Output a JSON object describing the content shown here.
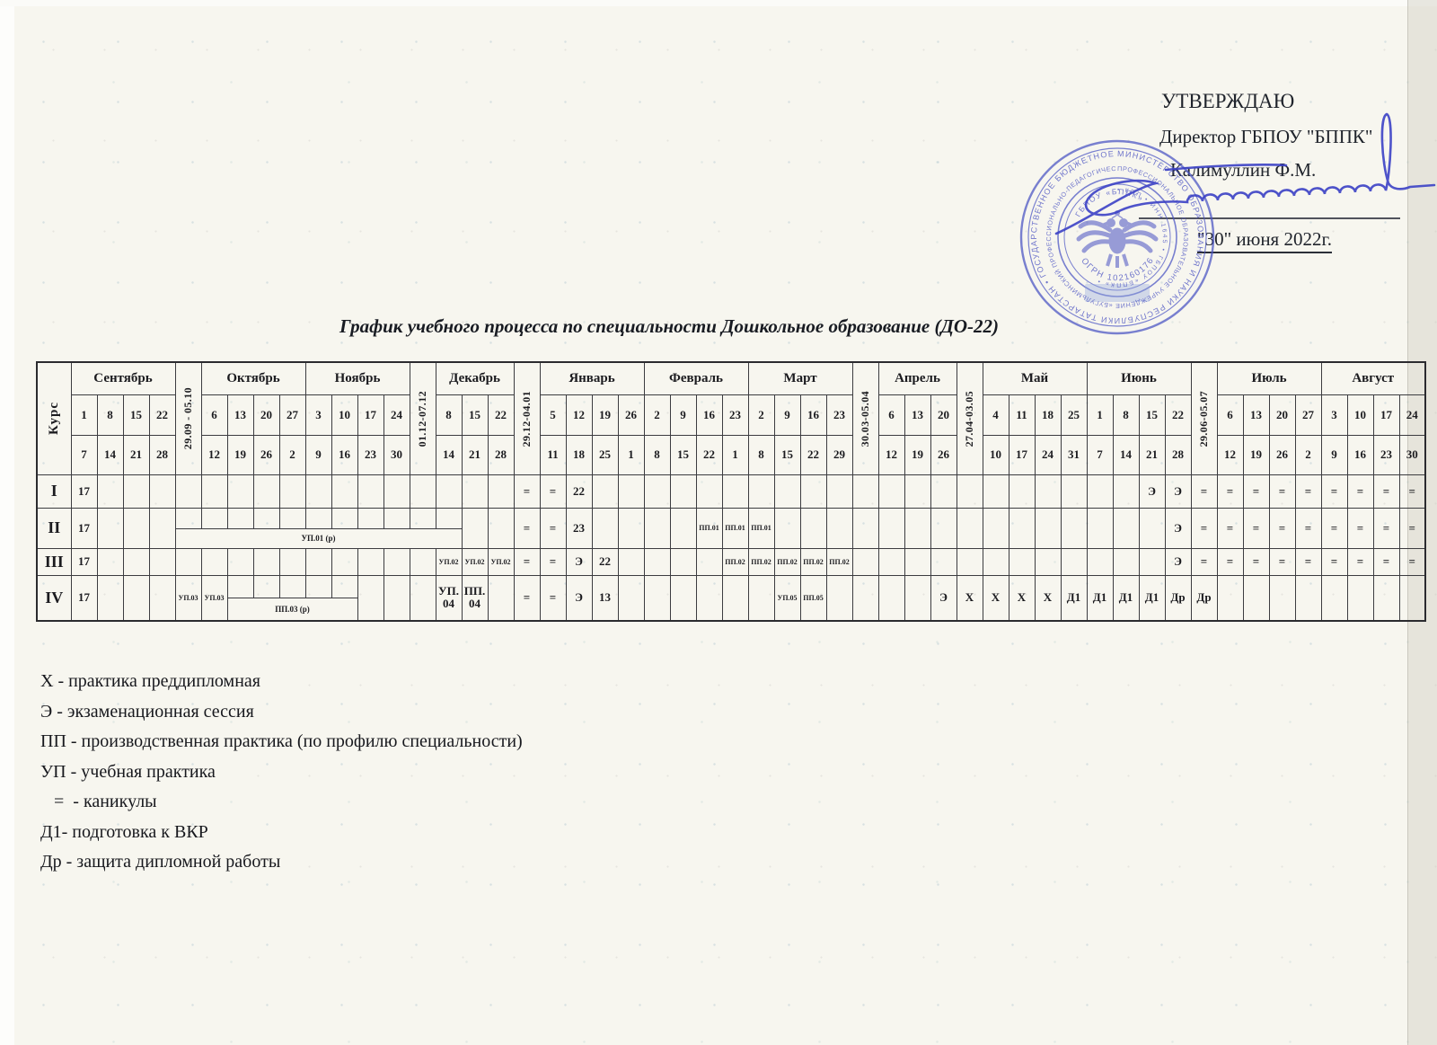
{
  "approval": {
    "line1": "УТВЕРЖДАЮ",
    "line2": "Директор ГБПОУ \"БППК\"",
    "line3": "Калимуллин Ф.М.",
    "date": "\"30\" июня 2022г."
  },
  "stamp": {
    "ring_outer": "МИНИСТЕРСТВО ОБРАЗОВАНИЯ И НАУКИ РЕСПУБЛИКИ ТАТАРСТАН • ГОСУДАРСТВЕННОЕ БЮДЖЕТНОЕ •",
    "ring_middle": "ПРОФЕССИОНАЛЬНОЕ ОБРАЗОВАТЕЛЬНОЕ УЧРЕЖДЕНИЕ «БУГУЛЬМИНСКИЙ ПРОФЕССИОНАЛЬНО-ПЕДАГОГИЧЕСКИЙ КОЛЛЕДЖ»",
    "ring_inner": "• КПП • ИНН 1645 • ГБПОУ «БППК» •",
    "arc_top": "ГБПОУ «БППК»",
    "arc_bottom": "ОГРН 1021601765140"
  },
  "title": "График учебного процесса по специальности Дошкольное образование (ДО-22)",
  "schedule": {
    "course_label": "Курс",
    "months": [
      {
        "name": "Сентябрь",
        "weeks": [
          [
            "1",
            "7"
          ],
          [
            "8",
            "14"
          ],
          [
            "15",
            "21"
          ],
          [
            "22",
            "28"
          ]
        ]
      },
      {
        "name": "29.09 - 05.10",
        "vertical": true
      },
      {
        "name": "Октябрь",
        "weeks": [
          [
            "6",
            "12"
          ],
          [
            "13",
            "19"
          ],
          [
            "20",
            "26"
          ],
          [
            "27",
            "2"
          ]
        ]
      },
      {
        "name": "Ноябрь",
        "weeks": [
          [
            "3",
            "9"
          ],
          [
            "10",
            "16"
          ],
          [
            "17",
            "23"
          ],
          [
            "24",
            "30"
          ]
        ]
      },
      {
        "name": "01.12-07.12",
        "vertical": true
      },
      {
        "name": "Декабрь",
        "weeks": [
          [
            "8",
            "14"
          ],
          [
            "15",
            "21"
          ],
          [
            "22",
            "28"
          ]
        ]
      },
      {
        "name": "29.12-04.01",
        "vertical": true
      },
      {
        "name": "Январь",
        "weeks": [
          [
            "5",
            "11"
          ],
          [
            "12",
            "18"
          ],
          [
            "19",
            "25"
          ],
          [
            "26",
            "1"
          ]
        ]
      },
      {
        "name": "Февраль",
        "weeks": [
          [
            "2",
            "8"
          ],
          [
            "9",
            "15"
          ],
          [
            "16",
            "22"
          ],
          [
            "23",
            "1"
          ]
        ]
      },
      {
        "name": "Март",
        "weeks": [
          [
            "2",
            "8"
          ],
          [
            "9",
            "15"
          ],
          [
            "16",
            "22"
          ],
          [
            "23",
            "29"
          ]
        ]
      },
      {
        "name": "30.03-05.04",
        "vertical": true
      },
      {
        "name": "Апрель",
        "weeks": [
          [
            "6",
            "12"
          ],
          [
            "13",
            "19"
          ],
          [
            "20",
            "26"
          ]
        ]
      },
      {
        "name": "27.04-03.05",
        "vertical": true
      },
      {
        "name": "Май",
        "weeks": [
          [
            "4",
            "10"
          ],
          [
            "11",
            "17"
          ],
          [
            "18",
            "24"
          ],
          [
            "25",
            "31"
          ]
        ]
      },
      {
        "name": "Июнь",
        "weeks": [
          [
            "1",
            "7"
          ],
          [
            "8",
            "14"
          ],
          [
            "15",
            "21"
          ],
          [
            "22",
            "28"
          ]
        ]
      },
      {
        "name": "29.06-05.07",
        "vertical": true
      },
      {
        "name": "Июль",
        "weeks": [
          [
            "6",
            "12"
          ],
          [
            "13",
            "19"
          ],
          [
            "20",
            "26"
          ],
          [
            "27",
            "2"
          ]
        ]
      },
      {
        "name": "Август",
        "weeks": [
          [
            "3",
            "9"
          ],
          [
            "10",
            "16"
          ],
          [
            "17",
            "23"
          ],
          [
            "24",
            "30"
          ]
        ]
      }
    ],
    "rows": [
      {
        "course": "I",
        "cells": {
          "0": "17",
          "17": "=",
          "18": "=",
          "19": "22",
          "41": "Э",
          "42": "Э",
          "43": "=",
          "44": "=",
          "45": "=",
          "46": "=",
          "47": "=",
          "48": "=",
          "49": "=",
          "50": "=",
          "51": "="
        },
        "splits": []
      },
      {
        "course": "II",
        "cells": {
          "0": "17",
          "17": "=",
          "18": "=",
          "19": "23",
          "24": "ПП.01",
          "25": "ПП.01",
          "26": "ПП.01",
          "42": "Э",
          "43": "=",
          "44": "=",
          "45": "=",
          "46": "=",
          "47": "=",
          "48": "=",
          "49": "=",
          "50": "=",
          "51": "="
        },
        "splits": [
          {
            "from": 4,
            "span": 11,
            "label": "УП.01 (р)"
          }
        ]
      },
      {
        "course": "III",
        "cells": {
          "0": "17",
          "14": "УП.02",
          "15": "УП.02",
          "16": "УП.02",
          "17": "=",
          "18": "=",
          "19": "Э",
          "20": "22",
          "25": "ПП.02",
          "26": "ПП.02",
          "27": "ПП.02",
          "28": "ПП.02",
          "29": "ПП.02",
          "42": "Э",
          "43": "=",
          "44": "=",
          "45": "=",
          "46": "=",
          "47": "=",
          "48": "=",
          "49": "=",
          "50": "=",
          "51": "="
        },
        "splits": []
      },
      {
        "course": "IV",
        "cells": {
          "0": "17",
          "4": "УП.03",
          "5": "УП.03",
          "14": "УП.\n04",
          "15": "ПП.\n04",
          "17": "=",
          "18": "=",
          "19": "Э",
          "20": "13",
          "27": "УП.05",
          "28": "ПП.05",
          "33": "Э",
          "34": "Х",
          "35": "Х",
          "36": "Х",
          "37": "Х",
          "38": "Д1",
          "39": "Д1",
          "40": "Д1",
          "41": "Д1",
          "42": "Др",
          "43": "Др"
        },
        "splits": [
          {
            "from": 6,
            "span": 5,
            "label": "ПП.03 (р)"
          }
        ]
      }
    ]
  },
  "legend": {
    "items": [
      "Х - практика преддипломная",
      "Э - экзаменационная сессия",
      "ПП - производственная практика (по профилю специальности)",
      "УП - учебная практика",
      "   =  - каникулы",
      "Д1- подготовка к ВКР",
      "Др - защита дипломной работы"
    ]
  }
}
